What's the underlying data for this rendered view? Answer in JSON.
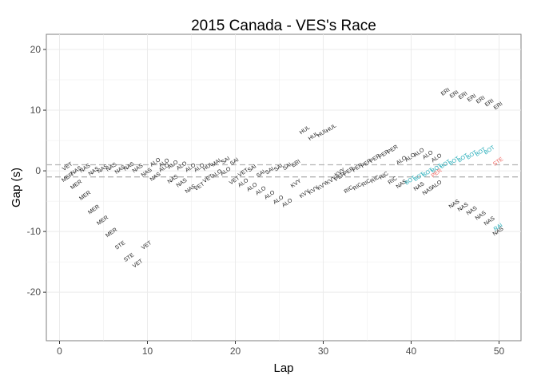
{
  "chart_data": {
    "type": "scatter",
    "title": "2015 Canada - VES's Race",
    "xlabel": "Lap",
    "ylabel": "Gap (s)",
    "xlim": [
      -1.5,
      52.5
    ],
    "ylim": [
      -28,
      22.5
    ],
    "x_ticks": [
      0,
      10,
      20,
      30,
      40,
      50
    ],
    "y_ticks": [
      -20,
      -10,
      0,
      10,
      20
    ],
    "grid": true,
    "reference_lines": [
      1,
      -1
    ],
    "colors": {
      "default": "#1a1a1a",
      "teal": "#1aa9b6",
      "red": "#f0625d",
      "grid": "#ebebeb",
      "ref": "#b3b3b3"
    },
    "points": [
      {
        "x": 1,
        "y": 0.5,
        "label": "VET"
      },
      {
        "x": 1,
        "y": -1.3,
        "label": "MER"
      },
      {
        "x": 2,
        "y": -0.2,
        "label": "NAS"
      },
      {
        "x": 2,
        "y": -2.5,
        "label": "MER"
      },
      {
        "x": 3,
        "y": 0.2,
        "label": "NAS"
      },
      {
        "x": 3,
        "y": -4.3,
        "label": "MER"
      },
      {
        "x": 4,
        "y": -0.3,
        "label": "NAS"
      },
      {
        "x": 4,
        "y": -6.6,
        "label": "MER"
      },
      {
        "x": 5,
        "y": 0.1,
        "label": "NAS"
      },
      {
        "x": 5,
        "y": -8.4,
        "label": "MER"
      },
      {
        "x": 6,
        "y": 0.4,
        "label": "NAS"
      },
      {
        "x": 6,
        "y": -10.4,
        "label": "MER"
      },
      {
        "x": 7,
        "y": 0.0,
        "label": "NAS"
      },
      {
        "x": 7,
        "y": -12.5,
        "label": "STE"
      },
      {
        "x": 8,
        "y": 0.5,
        "label": "NAS"
      },
      {
        "x": 8,
        "y": -14.5,
        "label": "STE"
      },
      {
        "x": 9,
        "y": 0.2,
        "label": "NAS"
      },
      {
        "x": 9,
        "y": -15.5,
        "label": "VET"
      },
      {
        "x": 10,
        "y": -0.5,
        "label": "NAS"
      },
      {
        "x": 10,
        "y": -12.5,
        "label": "VET"
      },
      {
        "x": 11,
        "y": 1.2,
        "label": "ALO"
      },
      {
        "x": 11,
        "y": -1.2,
        "label": "NAS"
      },
      {
        "x": 12,
        "y": 1.1,
        "label": "ALO"
      },
      {
        "x": 12,
        "y": 0.3,
        "label": "ALO"
      },
      {
        "x": 13,
        "y": 0.8,
        "label": "ALO"
      },
      {
        "x": 13,
        "y": -1.6,
        "label": "NAS"
      },
      {
        "x": 14,
        "y": 0.6,
        "label": "ALO"
      },
      {
        "x": 14,
        "y": -2.2,
        "label": "NAS"
      },
      {
        "x": 15,
        "y": 0.3,
        "label": "ALO"
      },
      {
        "x": 15,
        "y": -3.2,
        "label": "NAS"
      },
      {
        "x": 16,
        "y": 0.3,
        "label": "ALO"
      },
      {
        "x": 16,
        "y": -2.8,
        "label": "VET"
      },
      {
        "x": 17,
        "y": 0.5,
        "label": "HUL"
      },
      {
        "x": 17,
        "y": -1.5,
        "label": "VET"
      },
      {
        "x": 18,
        "y": 1.2,
        "label": "MAL"
      },
      {
        "x": 18,
        "y": -0.7,
        "label": "ALO"
      },
      {
        "x": 19,
        "y": 1.5,
        "label": "SAI"
      },
      {
        "x": 19,
        "y": -0.3,
        "label": "ALO"
      },
      {
        "x": 20,
        "y": 1.3,
        "label": "SAI"
      },
      {
        "x": 20,
        "y": -1.8,
        "label": "VET"
      },
      {
        "x": 21,
        "y": -0.5,
        "label": "VET"
      },
      {
        "x": 21,
        "y": -2.2,
        "label": "ALO"
      },
      {
        "x": 22,
        "y": 0.2,
        "label": "SAI"
      },
      {
        "x": 22,
        "y": -2.9,
        "label": "ALO"
      },
      {
        "x": 23,
        "y": -0.7,
        "label": "SAI"
      },
      {
        "x": 23,
        "y": -3.5,
        "label": "ALO"
      },
      {
        "x": 24,
        "y": -0.2,
        "label": "SAI"
      },
      {
        "x": 24,
        "y": -4.2,
        "label": "ALO"
      },
      {
        "x": 25,
        "y": 0.3,
        "label": "SAI"
      },
      {
        "x": 25,
        "y": -5.0,
        "label": "ALO"
      },
      {
        "x": 26,
        "y": 0.5,
        "label": "SAI"
      },
      {
        "x": 26,
        "y": -5.5,
        "label": "ALO"
      },
      {
        "x": 27,
        "y": 1.0,
        "label": "ERI"
      },
      {
        "x": 27,
        "y": -2.3,
        "label": "KVY"
      },
      {
        "x": 28,
        "y": 6.5,
        "label": "HUL"
      },
      {
        "x": 28,
        "y": -4.0,
        "label": "KVY"
      },
      {
        "x": 29,
        "y": 5.5,
        "label": "HUL"
      },
      {
        "x": 29,
        "y": -3.4,
        "label": "KVY"
      },
      {
        "x": 30,
        "y": 6.0,
        "label": "HUL"
      },
      {
        "x": 30,
        "y": -2.7,
        "label": "KVY"
      },
      {
        "x": 31,
        "y": 6.8,
        "label": "HUL"
      },
      {
        "x": 31,
        "y": -1.8,
        "label": "KVY"
      },
      {
        "x": 32,
        "y": -1.2,
        "label": "PER"
      },
      {
        "x": 32,
        "y": -0.5,
        "label": "KVY"
      },
      {
        "x": 33,
        "y": -0.3,
        "label": "PER"
      },
      {
        "x": 33,
        "y": -3.3,
        "label": "RIC"
      },
      {
        "x": 34,
        "y": 0.3,
        "label": "PER"
      },
      {
        "x": 34,
        "y": -2.8,
        "label": "RIC"
      },
      {
        "x": 35,
        "y": 1.0,
        "label": "PER"
      },
      {
        "x": 35,
        "y": -2.2,
        "label": "RIC"
      },
      {
        "x": 36,
        "y": 1.8,
        "label": "PER"
      },
      {
        "x": 36,
        "y": -1.6,
        "label": "RIC"
      },
      {
        "x": 37,
        "y": 2.5,
        "label": "PER"
      },
      {
        "x": 37,
        "y": -1.0,
        "label": "RIC"
      },
      {
        "x": 38,
        "y": 3.3,
        "label": "PER"
      },
      {
        "x": 38,
        "y": -1.8,
        "label": "RIC"
      },
      {
        "x": 39,
        "y": 1.5,
        "label": "ALO"
      },
      {
        "x": 39,
        "y": -2.4,
        "label": "NAS"
      },
      {
        "x": 40,
        "y": 2.0,
        "label": "ALO"
      },
      {
        "x": 40,
        "y": -1.8,
        "label": "BOT",
        "color": "teal"
      },
      {
        "x": 41,
        "y": 2.8,
        "label": "ALO"
      },
      {
        "x": 41,
        "y": -1.2,
        "label": "BOT",
        "color": "teal"
      },
      {
        "x": 41,
        "y": -2.8,
        "label": "NAS"
      },
      {
        "x": 42,
        "y": 2.4,
        "label": "ALO"
      },
      {
        "x": 42,
        "y": -0.5,
        "label": "BOT",
        "color": "teal"
      },
      {
        "x": 42,
        "y": -3.5,
        "label": "NAS"
      },
      {
        "x": 43,
        "y": 1.9,
        "label": "ALO"
      },
      {
        "x": 43,
        "y": 0.2,
        "label": "BOT",
        "color": "teal"
      },
      {
        "x": 43,
        "y": -0.6,
        "label": "PER",
        "color": "red"
      },
      {
        "x": 43,
        "y": -2.5,
        "label": "ALO"
      },
      {
        "x": 44,
        "y": 12.8,
        "label": "ERI"
      },
      {
        "x": 44,
        "y": 0.9,
        "label": "BOT",
        "color": "teal"
      },
      {
        "x": 45,
        "y": 12.4,
        "label": "ERI"
      },
      {
        "x": 45,
        "y": 1.4,
        "label": "BOT",
        "color": "teal"
      },
      {
        "x": 45,
        "y": -5.7,
        "label": "NAS"
      },
      {
        "x": 46,
        "y": 12.2,
        "label": "ERI"
      },
      {
        "x": 46,
        "y": 1.9,
        "label": "BOT",
        "color": "teal"
      },
      {
        "x": 46,
        "y": -6.2,
        "label": "NAS"
      },
      {
        "x": 47,
        "y": 11.8,
        "label": "ERI"
      },
      {
        "x": 47,
        "y": 2.4,
        "label": "BOT",
        "color": "teal"
      },
      {
        "x": 47,
        "y": -6.8,
        "label": "NAS"
      },
      {
        "x": 48,
        "y": 11.5,
        "label": "ERI"
      },
      {
        "x": 48,
        "y": 2.9,
        "label": "BOT",
        "color": "teal"
      },
      {
        "x": 48,
        "y": -7.6,
        "label": "NAS"
      },
      {
        "x": 49,
        "y": 11.0,
        "label": "ERI"
      },
      {
        "x": 49,
        "y": 3.2,
        "label": "BOT",
        "color": "teal"
      },
      {
        "x": 49,
        "y": -8.5,
        "label": "NAS"
      },
      {
        "x": 50,
        "y": 10.5,
        "label": "ERI"
      },
      {
        "x": 50,
        "y": 1.3,
        "label": "STE",
        "color": "red"
      },
      {
        "x": 50,
        "y": -9.5,
        "label": "RAI",
        "color": "teal"
      },
      {
        "x": 50,
        "y": -10.2,
        "label": "NAS"
      }
    ]
  }
}
